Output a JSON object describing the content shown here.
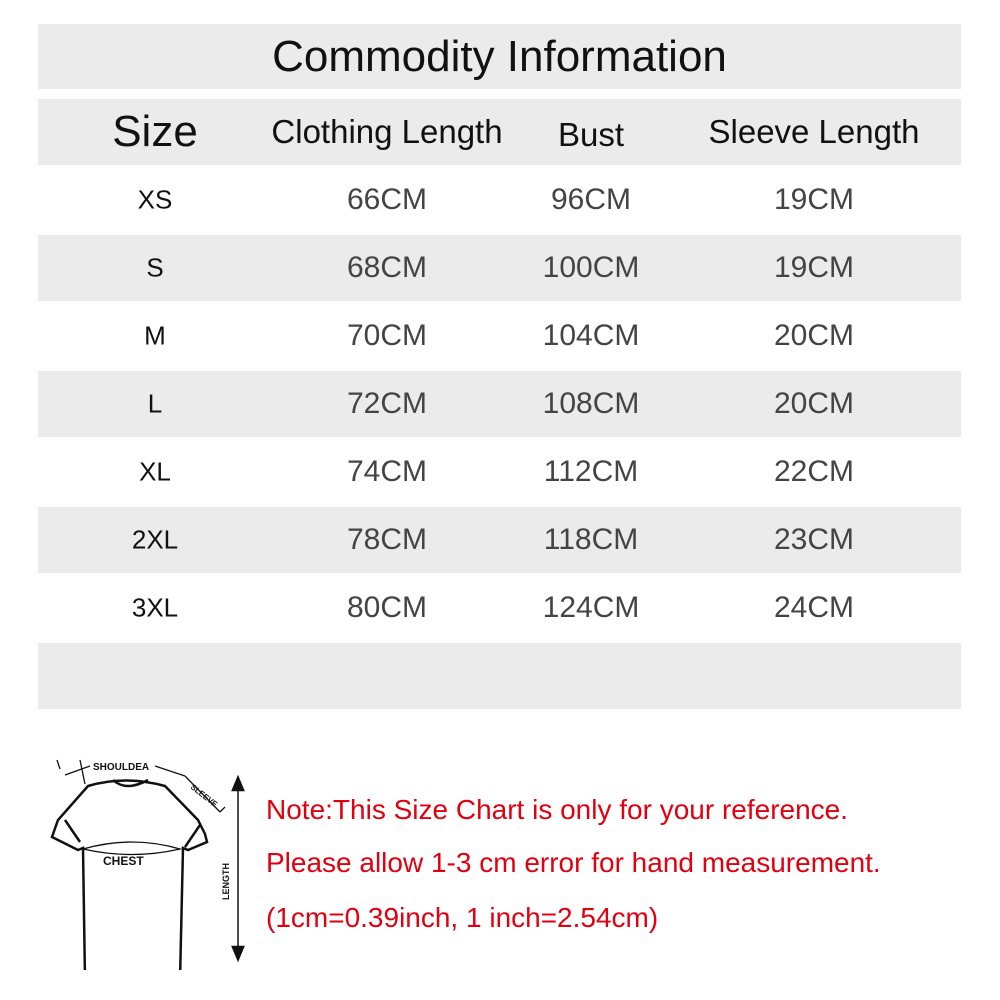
{
  "title": "Commodity Information",
  "headers": [
    "Size",
    "Clothing Length",
    "Bust",
    "Sleeve Length"
  ],
  "rows": [
    [
      "XS",
      "66CM",
      "96CM",
      "19CM"
    ],
    [
      "S",
      "68CM",
      "100CM",
      "19CM"
    ],
    [
      "M",
      "70CM",
      "104CM",
      "20CM"
    ],
    [
      "L",
      "72CM",
      "108CM",
      "20CM"
    ],
    [
      "XL",
      "74CM",
      "112CM",
      "22CM"
    ],
    [
      "2XL",
      "78CM",
      "118CM",
      "23CM"
    ],
    [
      "3XL",
      "80CM",
      "124CM",
      "24CM"
    ]
  ],
  "diagram": {
    "shoulder": "SHOULDEA",
    "sleeve": "SLEEVE",
    "chest": "CHEST",
    "length": "LENGTH"
  },
  "notes": [
    "Note:This Size Chart is only for your reference.",
    " Please allow 1-3 cm error for hand measurement.",
    "(1cm=0.39inch, 1 inch=2.54cm)"
  ],
  "colors": {
    "band": "#ebebeb",
    "note": "#e00010"
  }
}
